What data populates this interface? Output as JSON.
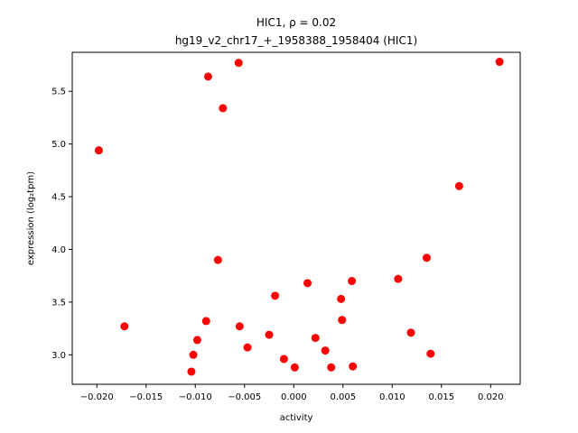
{
  "chart_data": {
    "type": "scatter",
    "title_line1": "HIC1, ρ = 0.02",
    "title_line2": "hg19_v2_chr17_+_1958388_1958404 (HIC1)",
    "xlabel": "activity",
    "ylabel": "expression (log₂tpm)",
    "xlim": [
      -0.0225,
      0.023
    ],
    "ylim": [
      2.72,
      5.87
    ],
    "grid": false,
    "marker_color": "#ff0000",
    "x_ticks": [
      -0.02,
      -0.015,
      -0.01,
      -0.005,
      0.0,
      0.005,
      0.01,
      0.015,
      0.02
    ],
    "x_tick_labels": [
      "−0.020",
      "−0.015",
      "−0.010",
      "−0.005",
      "0.000",
      "0.005",
      "0.010",
      "0.015",
      "0.020"
    ],
    "y_ticks": [
      3.0,
      3.5,
      4.0,
      4.5,
      5.0,
      5.5
    ],
    "y_tick_labels": [
      "3.0",
      "3.5",
      "4.0",
      "4.5",
      "5.0",
      "5.5"
    ],
    "points": [
      {
        "x": -0.0198,
        "y": 4.94
      },
      {
        "x": -0.0172,
        "y": 3.27
      },
      {
        "x": -0.0104,
        "y": 2.84
      },
      {
        "x": -0.0102,
        "y": 3.0
      },
      {
        "x": -0.0098,
        "y": 3.14
      },
      {
        "x": -0.0089,
        "y": 3.32
      },
      {
        "x": -0.0087,
        "y": 5.64
      },
      {
        "x": -0.0077,
        "y": 3.9
      },
      {
        "x": -0.0072,
        "y": 5.34
      },
      {
        "x": -0.0056,
        "y": 5.77
      },
      {
        "x": -0.0055,
        "y": 3.27
      },
      {
        "x": -0.0047,
        "y": 3.07
      },
      {
        "x": -0.0025,
        "y": 3.19
      },
      {
        "x": -0.0019,
        "y": 3.56
      },
      {
        "x": -0.001,
        "y": 2.96
      },
      {
        "x": 0.0001,
        "y": 2.88
      },
      {
        "x": 0.0014,
        "y": 3.68
      },
      {
        "x": 0.0022,
        "y": 3.16
      },
      {
        "x": 0.0032,
        "y": 3.04
      },
      {
        "x": 0.0038,
        "y": 2.88
      },
      {
        "x": 0.0048,
        "y": 3.53
      },
      {
        "x": 0.0049,
        "y": 3.33
      },
      {
        "x": 0.0059,
        "y": 3.7
      },
      {
        "x": 0.006,
        "y": 2.89
      },
      {
        "x": 0.0106,
        "y": 3.72
      },
      {
        "x": 0.0119,
        "y": 3.21
      },
      {
        "x": 0.0135,
        "y": 3.92
      },
      {
        "x": 0.0139,
        "y": 3.01
      },
      {
        "x": 0.0168,
        "y": 4.6
      },
      {
        "x": 0.0209,
        "y": 5.78
      }
    ]
  }
}
